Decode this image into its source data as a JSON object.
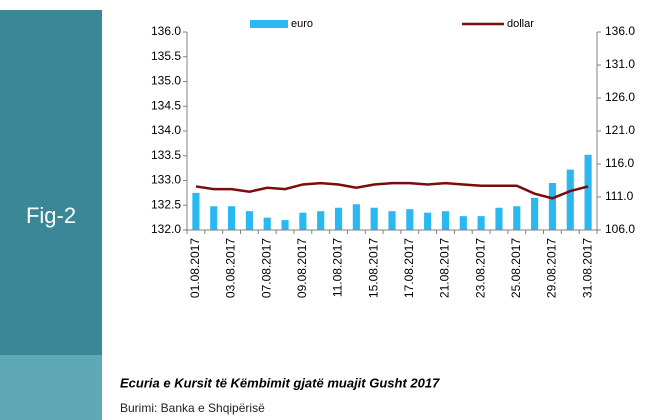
{
  "figure_label": "Fig-2",
  "caption": "Ecuria e Kursit të Këmbimit gjatë muajit Gusht 2017",
  "source": "Burimi: Banka e Shqipërisë",
  "chart_data": {
    "type": "bar",
    "categories": [
      "01.08.2017",
      null,
      "03.08.2017",
      null,
      "07.08.2017",
      null,
      "09.08.2017",
      null,
      "11.08.2017",
      null,
      "15.08.2017",
      null,
      "17.08.2017",
      null,
      "21.08.2017",
      null,
      "23.08.2017",
      null,
      "25.08.2017",
      null,
      "29.08.2017",
      null,
      "31.08.2017"
    ],
    "series": [
      {
        "name": "euro",
        "type": "bar",
        "color": "#29b8f0",
        "values": [
          132.75,
          132.48,
          132.48,
          132.38,
          132.25,
          132.2,
          132.35,
          132.38,
          132.45,
          132.52,
          132.45,
          132.38,
          132.42,
          132.35,
          132.38,
          132.28,
          132.28,
          132.45,
          132.48,
          132.65,
          132.95,
          133.22,
          133.52
        ]
      },
      {
        "name": "dollar",
        "type": "line",
        "axis": "y2",
        "color": "#7a0c0c",
        "values": [
          112.6,
          112.2,
          112.2,
          111.8,
          112.4,
          112.2,
          112.9,
          113.1,
          112.9,
          112.4,
          112.9,
          113.1,
          113.1,
          112.9,
          113.1,
          112.9,
          112.7,
          112.7,
          112.7,
          111.5,
          110.8,
          111.9,
          112.6
        ]
      }
    ],
    "ylim": [
      132,
      136
    ],
    "yticks": [
      {
        "value": 132,
        "label": "132.0"
      },
      132.5,
      {
        "value": 133,
        "label": "133.0"
      },
      133.5,
      {
        "value": 134,
        "label": "134.0"
      },
      134.5,
      {
        "value": 135,
        "label": "135.0"
      },
      135.5,
      {
        "value": 136,
        "label": "136.0"
      }
    ],
    "y2lim": [
      106,
      136
    ],
    "y2ticks": [
      {
        "value": 106,
        "label": "106.0"
      },
      {
        "value": 111,
        "label": "111.0"
      },
      {
        "value": 116,
        "label": "116.0"
      },
      {
        "value": 121,
        "label": "121.0"
      },
      {
        "value": 126,
        "label": "126.0"
      },
      {
        "value": 131,
        "label": "131.0"
      },
      {
        "value": 136,
        "label": "136.0"
      }
    ],
    "grid": false,
    "legend": "top"
  }
}
